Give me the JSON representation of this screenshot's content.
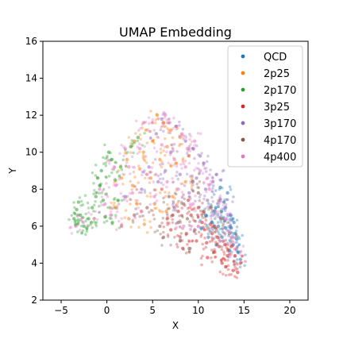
{
  "chart_data": {
    "type": "scatter",
    "title": "UMAP Embedding",
    "xlabel": "X",
    "ylabel": "Y",
    "xlim": [
      -7,
      22
    ],
    "ylim": [
      2,
      16
    ],
    "xticks": [
      -5,
      0,
      5,
      10,
      15,
      20
    ],
    "yticks": [
      2,
      4,
      6,
      8,
      10,
      12,
      14,
      16
    ],
    "xtick_labels": [
      "−5",
      "0",
      "5",
      "10",
      "15",
      "20"
    ],
    "ytick_labels": [
      "2",
      "4",
      "6",
      "8",
      "10",
      "12",
      "14",
      "16"
    ],
    "grid": false,
    "legend_position": "top-right",
    "series": [
      {
        "name": "QCD",
        "color": "#1f77b4",
        "points": [
          [
            11.5,
            6.2
          ],
          [
            12.5,
            6.8
          ],
          [
            13.0,
            5.9
          ],
          [
            13.5,
            6.6
          ],
          [
            14.0,
            5.6
          ],
          [
            12.8,
            7.3
          ],
          [
            14.4,
            4.6
          ],
          [
            13.8,
            5.0
          ],
          [
            12.2,
            6.0
          ],
          [
            10.8,
            6.6
          ],
          [
            13.2,
            7.8
          ],
          [
            12.6,
            5.4
          ],
          [
            14.6,
            4.2
          ],
          [
            11.9,
            7.0
          ],
          [
            13.9,
            6.2
          ],
          [
            12.4,
            8.1
          ],
          [
            10.3,
            5.9
          ],
          [
            11.1,
            5.4
          ],
          [
            13.4,
            4.7
          ],
          [
            14.2,
            5.3
          ],
          [
            12.9,
            6.3
          ],
          [
            11.7,
            6.8
          ],
          [
            13.6,
            5.9
          ]
        ]
      },
      {
        "name": "2p25",
        "color": "#ff7f0e",
        "points": [
          [
            5.5,
            12.0
          ],
          [
            6.2,
            11.6
          ],
          [
            4.3,
            11.2
          ],
          [
            3.0,
            10.6
          ],
          [
            7.0,
            11.2
          ],
          [
            5.0,
            10.6
          ],
          [
            2.2,
            9.6
          ],
          [
            6.6,
            10.3
          ],
          [
            4.0,
            10.0
          ],
          [
            8.0,
            10.8
          ],
          [
            3.6,
            9.1
          ],
          [
            5.8,
            9.6
          ],
          [
            1.6,
            8.6
          ],
          [
            9.0,
            9.8
          ],
          [
            7.6,
            9.4
          ],
          [
            2.8,
            8.2
          ],
          [
            4.8,
            8.6
          ],
          [
            6.0,
            8.0
          ],
          [
            3.3,
            7.2
          ],
          [
            8.6,
            8.4
          ],
          [
            1.0,
            7.0
          ],
          [
            5.2,
            7.2
          ],
          [
            7.2,
            7.6
          ],
          [
            2.4,
            6.4
          ],
          [
            6.5,
            6.8
          ],
          [
            4.1,
            6.1
          ]
        ]
      },
      {
        "name": "2p170",
        "color": "#2ca02c",
        "points": [
          [
            -3.1,
            7.3
          ],
          [
            -3.3,
            6.9
          ],
          [
            -3.6,
            6.4
          ],
          [
            -3.4,
            6.1
          ],
          [
            -2.9,
            6.6
          ],
          [
            -2.5,
            6.0
          ],
          [
            -2.0,
            6.4
          ],
          [
            -1.6,
            7.0
          ],
          [
            -1.2,
            7.6
          ],
          [
            -0.8,
            8.2
          ],
          [
            -0.6,
            9.0
          ],
          [
            -1.0,
            8.6
          ],
          [
            0.5,
            9.6
          ],
          [
            0.2,
            10.0
          ],
          [
            -0.4,
            7.4
          ],
          [
            -2.2,
            5.9
          ],
          [
            0.9,
            8.5
          ],
          [
            1.5,
            9.2
          ],
          [
            2.6,
            10.3
          ],
          [
            -1.7,
            6.2
          ],
          [
            -0.2,
            6.5
          ],
          [
            0.6,
            6.2
          ],
          [
            3.4,
            10.8
          ],
          [
            1.2,
            7.4
          ]
        ]
      },
      {
        "name": "3p25",
        "color": "#d62728",
        "points": [
          [
            13.8,
            3.6
          ],
          [
            14.3,
            3.5
          ],
          [
            12.6,
            4.0
          ],
          [
            13.2,
            4.4
          ],
          [
            11.8,
            4.6
          ],
          [
            14.6,
            4.0
          ],
          [
            12.9,
            5.0
          ],
          [
            10.9,
            5.1
          ],
          [
            11.5,
            5.6
          ],
          [
            9.8,
            5.2
          ],
          [
            10.4,
            6.2
          ],
          [
            8.7,
            5.6
          ],
          [
            9.2,
            6.6
          ],
          [
            12.3,
            4.9
          ],
          [
            7.8,
            6.8
          ],
          [
            8.3,
            4.8
          ],
          [
            13.6,
            4.9
          ],
          [
            11.0,
            4.3
          ],
          [
            7.0,
            5.8
          ],
          [
            14.0,
            4.4
          ],
          [
            6.6,
            6.4
          ],
          [
            10.0,
            7.0
          ],
          [
            12.1,
            5.4
          ],
          [
            8.9,
            7.4
          ],
          [
            11.3,
            6.1
          ],
          [
            13.0,
            3.8
          ]
        ]
      },
      {
        "name": "3p170",
        "color": "#9467bd",
        "points": [
          [
            6.0,
            11.8
          ],
          [
            7.6,
            11.4
          ],
          [
            9.4,
            10.2
          ],
          [
            10.6,
            9.4
          ],
          [
            11.6,
            8.4
          ],
          [
            12.4,
            7.4
          ],
          [
            8.6,
            10.6
          ],
          [
            5.4,
            11.0
          ],
          [
            7.0,
            10.0
          ],
          [
            9.8,
            8.6
          ],
          [
            11.0,
            7.4
          ],
          [
            6.4,
            9.0
          ],
          [
            8.0,
            8.8
          ],
          [
            10.2,
            9.8
          ],
          [
            4.6,
            9.2
          ],
          [
            12.0,
            8.8
          ],
          [
            13.0,
            7.0
          ],
          [
            9.0,
            7.8
          ],
          [
            3.8,
            8.0
          ],
          [
            5.6,
            8.4
          ],
          [
            7.4,
            7.0
          ],
          [
            10.8,
            8.0
          ],
          [
            2.0,
            7.6
          ],
          [
            13.5,
            6.0
          ]
        ]
      },
      {
        "name": "4p170",
        "color": "#8c564b",
        "points": [
          [
            7.8,
            6.2
          ],
          [
            9.6,
            5.8
          ],
          [
            8.4,
            7.2
          ],
          [
            6.8,
            7.6
          ],
          [
            10.6,
            6.8
          ],
          [
            11.4,
            7.0
          ],
          [
            9.0,
            4.8
          ],
          [
            7.2,
            6.6
          ],
          [
            12.6,
            6.4
          ],
          [
            5.8,
            6.0
          ],
          [
            10.0,
            7.8
          ],
          [
            8.8,
            6.4
          ],
          [
            6.2,
            5.4
          ],
          [
            11.8,
            6.0
          ],
          [
            4.4,
            7.0
          ],
          [
            13.4,
            5.6
          ],
          [
            9.4,
            8.4
          ],
          [
            3.0,
            6.6
          ],
          [
            8.0,
            5.2
          ],
          [
            12.0,
            5.0
          ]
        ]
      },
      {
        "name": "4p400",
        "color": "#e377c2",
        "points": [
          [
            6.8,
            11.6
          ],
          [
            8.2,
            11.0
          ],
          [
            9.6,
            10.6
          ],
          [
            5.0,
            11.6
          ],
          [
            3.6,
            10.2
          ],
          [
            2.4,
            9.2
          ],
          [
            1.0,
            8.2
          ],
          [
            -0.2,
            7.2
          ],
          [
            -1.4,
            6.4
          ],
          [
            -2.6,
            6.2
          ],
          [
            -3.4,
            6.0
          ],
          [
            10.2,
            9.0
          ],
          [
            11.2,
            8.0
          ],
          [
            12.2,
            7.2
          ],
          [
            6.0,
            10.4
          ],
          [
            7.4,
            9.6
          ],
          [
            4.4,
            8.8
          ],
          [
            8.6,
            9.2
          ],
          [
            0.4,
            6.6
          ],
          [
            2.8,
            7.8
          ],
          [
            5.2,
            7.6
          ],
          [
            9.4,
            7.2
          ],
          [
            11.6,
            6.6
          ],
          [
            6.6,
            8.4
          ],
          [
            3.8,
            6.8
          ],
          [
            1.6,
            6.0
          ],
          [
            13.0,
            6.4
          ],
          [
            7.8,
            8.0
          ],
          [
            10.0,
            6.0
          ],
          [
            12.8,
            5.2
          ],
          [
            14.2,
            4.8
          ],
          [
            8.4,
            6.0
          ],
          [
            0.8,
            9.2
          ],
          [
            -0.8,
            8.0
          ],
          [
            2.0,
            10.2
          ],
          [
            4.0,
            11.6
          ],
          [
            6.4,
            12.0
          ],
          [
            8.8,
            10.2
          ],
          [
            11.0,
            8.6
          ],
          [
            13.6,
            5.4
          ]
        ]
      }
    ]
  }
}
